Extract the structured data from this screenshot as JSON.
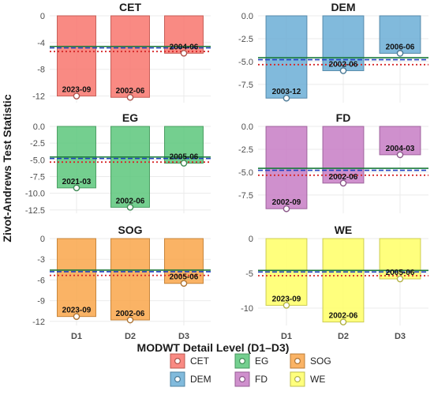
{
  "chart_data": {
    "type": "bar",
    "ylabel": "Zivot-Andrews Test Statistic",
    "xlabel": "MODWT Detail Level (D1–D3)",
    "categories": [
      "D1",
      "D2",
      "D3"
    ],
    "reference_lines": [
      {
        "value": -4.58,
        "style": "solid",
        "color": "#1a7a3a"
      },
      {
        "value": -4.8,
        "style": "dashed",
        "color": "#1f3fbf"
      },
      {
        "value": -5.34,
        "style": "dotted",
        "color": "#d62728"
      }
    ],
    "panels": [
      {
        "name": "CET",
        "color": "#f8766d",
        "ylim": [
          -13,
          0
        ],
        "ticks": [
          0,
          -4,
          -8,
          -12
        ],
        "tick_labels": [
          "0",
          "-4",
          "-8",
          "-12"
        ],
        "values": [
          -12.0,
          -12.2,
          -5.6
        ],
        "labels": [
          "2023-09",
          "2002-06",
          "2004-06"
        ]
      },
      {
        "name": "DEM",
        "color": "#6baed6",
        "ylim": [
          -9.5,
          0
        ],
        "ticks": [
          0,
          -2.5,
          -5,
          -7.5
        ],
        "tick_labels": [
          "0.0",
          "-2.5",
          "-5.0",
          "-7.5"
        ],
        "values": [
          -9.0,
          -6.0,
          -4.1
        ],
        "labels": [
          "2003-12",
          "2002-06",
          "2006-06"
        ]
      },
      {
        "name": "EG",
        "color": "#5cc77b",
        "ylim": [
          -13,
          0
        ],
        "ticks": [
          0,
          -2.5,
          -5,
          -7.5,
          -10,
          -12.5
        ],
        "tick_labels": [
          "0.0",
          "-2.5",
          "-5.0",
          "-7.5",
          "-10.0",
          "-12.5"
        ],
        "values": [
          -9.2,
          -12.1,
          -5.5
        ],
        "labels": [
          "2021-03",
          "2002-06",
          "2005-06"
        ]
      },
      {
        "name": "FD",
        "color": "#c77cc4",
        "ylim": [
          -9.5,
          0
        ],
        "ticks": [
          0,
          -2.5,
          -5,
          -7.5
        ],
        "tick_labels": [
          "0.0",
          "-2.5",
          "-5.0",
          "-7.5"
        ],
        "values": [
          -9.0,
          -6.2,
          -3.1
        ],
        "labels": [
          "2002-09",
          "2002-06",
          "2004-03"
        ]
      },
      {
        "name": "SOG",
        "color": "#f9a64a",
        "ylim": [
          -12.6,
          0
        ],
        "ticks": [
          0,
          -3,
          -6,
          -9,
          -12
        ],
        "tick_labels": [
          "0",
          "-3",
          "-6",
          "-9",
          "-12"
        ],
        "values": [
          -11.3,
          -11.8,
          -6.5
        ],
        "labels": [
          "2023-09",
          "2002-06",
          "2005-06"
        ]
      },
      {
        "name": "WE",
        "color": "#ffff66",
        "ylim": [
          -12.5,
          0
        ],
        "ticks": [
          0,
          -5,
          -10
        ],
        "tick_labels": [
          "0",
          "-5",
          "-10"
        ],
        "values": [
          -9.6,
          -12.0,
          -5.8
        ],
        "labels": [
          "2023-09",
          "2002-06",
          "2005-06"
        ]
      }
    ],
    "legend": {
      "placement": "bottom",
      "items": [
        {
          "name": "CET",
          "color": "#f8766d"
        },
        {
          "name": "EG",
          "color": "#5cc77b"
        },
        {
          "name": "SOG",
          "color": "#f9a64a"
        },
        {
          "name": "DEM",
          "color": "#6baed6"
        },
        {
          "name": "FD",
          "color": "#c77cc4"
        },
        {
          "name": "WE",
          "color": "#ffff66"
        }
      ]
    }
  }
}
